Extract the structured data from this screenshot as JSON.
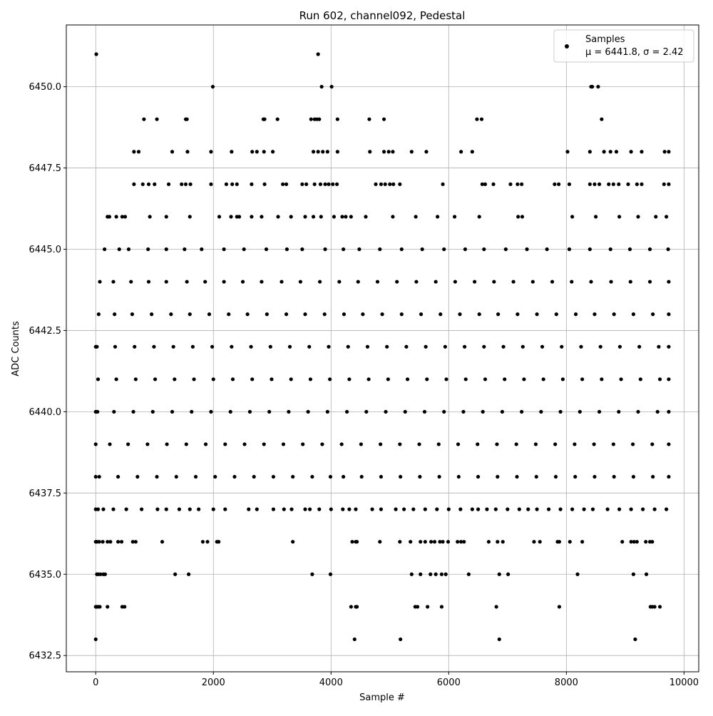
{
  "chart_data": {
    "type": "scatter",
    "title": "Run 602, channel092, Pedestal",
    "xlabel": "Sample #",
    "ylabel": "ADC Counts",
    "xlim": [
      -500,
      10250
    ],
    "ylim": [
      6432.0,
      6451.9
    ],
    "grid": true,
    "xticks": [
      0,
      2000,
      4000,
      6000,
      8000,
      10000
    ],
    "xtick_labels": [
      "0",
      "2000",
      "4000",
      "6000",
      "8000",
      "10000"
    ],
    "yticks": [
      6432.5,
      6435.0,
      6437.5,
      6440.0,
      6442.5,
      6445.0,
      6447.5,
      6450.0
    ],
    "ytick_labels": [
      "6432.5",
      "6435.0",
      "6437.5",
      "6440.0",
      "6442.5",
      "6445.0",
      "6447.5",
      "6450.0"
    ],
    "legend": {
      "placement": "top-right",
      "series_name": "Samples",
      "stats_text": "μ = 6441.8, σ = 2.42"
    },
    "marker_color": "#000000",
    "series": [
      {
        "name": "Samples",
        "x": [
          10,
          1990,
          3780,
          3840,
          4010,
          8420,
          8440,
          8540,
          820,
          1040,
          1530,
          1550,
          2850,
          2870,
          3090,
          3660,
          3720,
          3760,
          3800,
          4110,
          4650,
          4900,
          6480,
          6560,
          8600,
          650,
          730,
          1300,
          1560,
          1960,
          2310,
          2660,
          2740,
          2860,
          3010,
          3700,
          3780,
          3860,
          3940,
          4110,
          4660,
          4900,
          4980,
          5050,
          5370,
          5620,
          6210,
          6400,
          8020,
          8400,
          8640,
          8750,
          8850,
          9100,
          9280,
          9670,
          9740,
          650,
          800,
          900,
          1000,
          1240,
          1460,
          1530,
          1610,
          1960,
          2220,
          2320,
          2400,
          2650,
          2870,
          3180,
          3240,
          3510,
          3580,
          3720,
          3820,
          3900,
          3960,
          4030,
          4100,
          4760,
          4850,
          4920,
          5000,
          5060,
          5170,
          5900,
          6570,
          6620,
          6760,
          7050,
          7170,
          7240,
          7800,
          7870,
          8050,
          8400,
          8480,
          8560,
          8720,
          8800,
          8890,
          9050,
          9200,
          9280,
          9660,
          9740,
          233,
          200,
          350,
          500,
          450,
          1200,
          920,
          1600,
          2100,
          2300,
          2400,
          2440,
          2650,
          2820,
          3100,
          3320,
          3560,
          3700,
          3830,
          4050,
          4190,
          4250,
          4340,
          4590,
          5050,
          5440,
          5810,
          6100,
          6520,
          7180,
          7250,
          8100,
          8500,
          8900,
          9220,
          9520,
          9700,
          150,
          400,
          560,
          890,
          1200,
          1510,
          1800,
          2180,
          2520,
          2900,
          3250,
          3510,
          3900,
          4210,
          4480,
          4830,
          5200,
          5550,
          5920,
          6280,
          6600,
          6970,
          7330,
          7670,
          8050,
          8400,
          8750,
          9080,
          9420,
          9730,
          70,
          300,
          600,
          900,
          1200,
          1550,
          1860,
          2180,
          2500,
          2820,
          3160,
          3480,
          3810,
          4140,
          4460,
          4790,
          5120,
          5450,
          5780,
          6110,
          6440,
          6770,
          7100,
          7430,
          7760,
          8090,
          8420,
          8760,
          9090,
          9420,
          9740,
          50,
          320,
          620,
          950,
          1280,
          1600,
          1930,
          2260,
          2580,
          2910,
          3240,
          3560,
          3890,
          4220,
          4540,
          4870,
          5200,
          5530,
          5860,
          6190,
          6520,
          6840,
          7170,
          7500,
          7830,
          8160,
          8480,
          8810,
          9140,
          9470,
          9740,
          0,
          20,
          330,
          660,
          990,
          1320,
          1650,
          1980,
          2310,
          2640,
          2970,
          3300,
          3630,
          3960,
          4290,
          4620,
          4950,
          5280,
          5610,
          5940,
          6270,
          6600,
          6930,
          7260,
          7590,
          7920,
          8250,
          8580,
          8910,
          9240,
          9570,
          9740,
          40,
          350,
          680,
          1010,
          1340,
          1670,
          2000,
          2330,
          2660,
          2990,
          3320,
          3650,
          3980,
          4310,
          4640,
          4970,
          5300,
          5630,
          5960,
          6290,
          6620,
          6950,
          7280,
          7610,
          7940,
          8270,
          8600,
          8930,
          9260,
          9590,
          9740,
          0,
          30,
          310,
          640,
          970,
          1300,
          1630,
          1960,
          2290,
          2620,
          2950,
          3280,
          3610,
          3940,
          4270,
          4600,
          4930,
          5260,
          5590,
          5920,
          6250,
          6580,
          6910,
          7240,
          7570,
          7900,
          8230,
          8560,
          8890,
          9220,
          9550,
          9740,
          0,
          240,
          550,
          880,
          1210,
          1540,
          1870,
          2200,
          2530,
          2860,
          3190,
          3520,
          3850,
          4180,
          4510,
          4840,
          5170,
          5500,
          5830,
          6160,
          6490,
          6820,
          7150,
          7480,
          7810,
          8140,
          8470,
          8800,
          9130,
          9460,
          9740,
          0,
          60,
          380,
          710,
          1040,
          1370,
          1700,
          2030,
          2360,
          2690,
          3020,
          3350,
          3680,
          3990,
          4210,
          4520,
          4850,
          5180,
          5510,
          5840,
          6170,
          6500,
          6830,
          7160,
          7490,
          7820,
          8150,
          8480,
          8810,
          9140,
          9470,
          9740,
          0,
          40,
          130,
          300,
          520,
          780,
          1050,
          1200,
          1420,
          1600,
          1750,
          2000,
          2200,
          2600,
          2740,
          3020,
          3200,
          3330,
          3560,
          3640,
          3800,
          4000,
          4200,
          4310,
          4420,
          4700,
          4850,
          5100,
          5240,
          5400,
          5600,
          5800,
          6000,
          6200,
          6400,
          6500,
          6650,
          6800,
          7000,
          7200,
          7350,
          7500,
          7700,
          7900,
          8100,
          8300,
          8450,
          8700,
          8900,
          9100,
          9300,
          9500,
          9700,
          0,
          20,
          60,
          120,
          200,
          250,
          380,
          440,
          630,
          680,
          1130,
          1820,
          1900,
          2060,
          2090,
          3350,
          4360,
          4420,
          4440,
          4830,
          5170,
          5350,
          5520,
          5600,
          5700,
          5760,
          5850,
          5900,
          5990,
          6150,
          6210,
          6260,
          6680,
          6830,
          6920,
          7450,
          7550,
          7850,
          7880,
          8060,
          8270,
          8950,
          9100,
          9150,
          9200,
          9350,
          9420,
          9460,
          20,
          40,
          80,
          130,
          160,
          1350,
          1580,
          3680,
          3990,
          5370,
          5520,
          5690,
          5780,
          5880,
          5950,
          6340,
          6860,
          7010,
          8190,
          9140,
          9360,
          0,
          20,
          40,
          70,
          200,
          450,
          490,
          4340,
          4420,
          4440,
          5430,
          5470,
          5640,
          5880,
          6810,
          7880,
          9430,
          9460,
          9500,
          9590,
          0,
          4400,
          5180,
          6860,
          9170
        ],
        "y": [
          6451.0,
          6450.0,
          6451.0,
          6450.0,
          6450.0,
          6450.0,
          6450.0,
          6450.0,
          6449.0,
          6449.0,
          6449.0,
          6449.0,
          6449.0,
          6449.0,
          6449.0,
          6449.0,
          6449.0,
          6449.0,
          6449.0,
          6449.0,
          6449.0,
          6449.0,
          6449.0,
          6449.0,
          6449.0,
          6448.0,
          6448.0,
          6448.0,
          6448.0,
          6448.0,
          6448.0,
          6448.0,
          6448.0,
          6448.0,
          6448.0,
          6448.0,
          6448.0,
          6448.0,
          6448.0,
          6448.0,
          6448.0,
          6448.0,
          6448.0,
          6448.0,
          6448.0,
          6448.0,
          6448.0,
          6448.0,
          6448.0,
          6448.0,
          6448.0,
          6448.0,
          6448.0,
          6448.0,
          6448.0,
          6448.0,
          6448.0,
          6447.0,
          6447.0,
          6447.0,
          6447.0,
          6447.0,
          6447.0,
          6447.0,
          6447.0,
          6447.0,
          6447.0,
          6447.0,
          6447.0,
          6447.0,
          6447.0,
          6447.0,
          6447.0,
          6447.0,
          6447.0,
          6447.0,
          6447.0,
          6447.0,
          6447.0,
          6447.0,
          6447.0,
          6447.0,
          6447.0,
          6447.0,
          6447.0,
          6447.0,
          6447.0,
          6447.0,
          6447.0,
          6447.0,
          6447.0,
          6447.0,
          6447.0,
          6447.0,
          6447.0,
          6447.0,
          6447.0,
          6447.0,
          6447.0,
          6447.0,
          6447.0,
          6447.0,
          6447.0,
          6447.0,
          6447.0,
          6447.0,
          6447.0,
          6447.0,
          6446.0,
          6446.0,
          6446.0,
          6446.0,
          6446.0,
          6446.0,
          6446.0,
          6446.0,
          6446.0,
          6446.0,
          6446.0,
          6446.0,
          6446.0,
          6446.0,
          6446.0,
          6446.0,
          6446.0,
          6446.0,
          6446.0,
          6446.0,
          6446.0,
          6446.0,
          6446.0,
          6446.0,
          6446.0,
          6446.0,
          6446.0,
          6446.0,
          6446.0,
          6446.0,
          6446.0,
          6446.0,
          6446.0,
          6446.0,
          6446.0,
          6446.0,
          6446.0,
          6445.0,
          6445.0,
          6445.0,
          6445.0,
          6445.0,
          6445.0,
          6445.0,
          6445.0,
          6445.0,
          6445.0,
          6445.0,
          6445.0,
          6445.0,
          6445.0,
          6445.0,
          6445.0,
          6445.0,
          6445.0,
          6445.0,
          6445.0,
          6445.0,
          6445.0,
          6445.0,
          6445.0,
          6445.0,
          6445.0,
          6445.0,
          6445.0,
          6445.0,
          6445.0,
          6444.0,
          6444.0,
          6444.0,
          6444.0,
          6444.0,
          6444.0,
          6444.0,
          6444.0,
          6444.0,
          6444.0,
          6444.0,
          6444.0,
          6444.0,
          6444.0,
          6444.0,
          6444.0,
          6444.0,
          6444.0,
          6444.0,
          6444.0,
          6444.0,
          6444.0,
          6444.0,
          6444.0,
          6444.0,
          6444.0,
          6444.0,
          6444.0,
          6444.0,
          6444.0,
          6444.0,
          6443.0,
          6443.0,
          6443.0,
          6443.0,
          6443.0,
          6443.0,
          6443.0,
          6443.0,
          6443.0,
          6443.0,
          6443.0,
          6443.0,
          6443.0,
          6443.0,
          6443.0,
          6443.0,
          6443.0,
          6443.0,
          6443.0,
          6443.0,
          6443.0,
          6443.0,
          6443.0,
          6443.0,
          6443.0,
          6443.0,
          6443.0,
          6443.0,
          6443.0,
          6443.0,
          6443.0,
          6442.0,
          6442.0,
          6442.0,
          6442.0,
          6442.0,
          6442.0,
          6442.0,
          6442.0,
          6442.0,
          6442.0,
          6442.0,
          6442.0,
          6442.0,
          6442.0,
          6442.0,
          6442.0,
          6442.0,
          6442.0,
          6442.0,
          6442.0,
          6442.0,
          6442.0,
          6442.0,
          6442.0,
          6442.0,
          6442.0,
          6442.0,
          6442.0,
          6442.0,
          6442.0,
          6442.0,
          6442.0,
          6441.0,
          6441.0,
          6441.0,
          6441.0,
          6441.0,
          6441.0,
          6441.0,
          6441.0,
          6441.0,
          6441.0,
          6441.0,
          6441.0,
          6441.0,
          6441.0,
          6441.0,
          6441.0,
          6441.0,
          6441.0,
          6441.0,
          6441.0,
          6441.0,
          6441.0,
          6441.0,
          6441.0,
          6441.0,
          6441.0,
          6441.0,
          6441.0,
          6441.0,
          6441.0,
          6441.0,
          6440.0,
          6440.0,
          6440.0,
          6440.0,
          6440.0,
          6440.0,
          6440.0,
          6440.0,
          6440.0,
          6440.0,
          6440.0,
          6440.0,
          6440.0,
          6440.0,
          6440.0,
          6440.0,
          6440.0,
          6440.0,
          6440.0,
          6440.0,
          6440.0,
          6440.0,
          6440.0,
          6440.0,
          6440.0,
          6440.0,
          6440.0,
          6440.0,
          6440.0,
          6440.0,
          6440.0,
          6440.0,
          6439.0,
          6439.0,
          6439.0,
          6439.0,
          6439.0,
          6439.0,
          6439.0,
          6439.0,
          6439.0,
          6439.0,
          6439.0,
          6439.0,
          6439.0,
          6439.0,
          6439.0,
          6439.0,
          6439.0,
          6439.0,
          6439.0,
          6439.0,
          6439.0,
          6439.0,
          6439.0,
          6439.0,
          6439.0,
          6439.0,
          6439.0,
          6439.0,
          6439.0,
          6439.0,
          6439.0,
          6438.0,
          6438.0,
          6438.0,
          6438.0,
          6438.0,
          6438.0,
          6438.0,
          6438.0,
          6438.0,
          6438.0,
          6438.0,
          6438.0,
          6438.0,
          6438.0,
          6438.0,
          6438.0,
          6438.0,
          6438.0,
          6438.0,
          6438.0,
          6438.0,
          6438.0,
          6438.0,
          6438.0,
          6438.0,
          6438.0,
          6438.0,
          6438.0,
          6438.0,
          6438.0,
          6438.0,
          6438.0,
          6437.0,
          6437.0,
          6437.0,
          6437.0,
          6437.0,
          6437.0,
          6437.0,
          6437.0,
          6437.0,
          6437.0,
          6437.0,
          6437.0,
          6437.0,
          6437.0,
          6437.0,
          6437.0,
          6437.0,
          6437.0,
          6437.0,
          6437.0,
          6437.0,
          6437.0,
          6437.0,
          6437.0,
          6437.0,
          6437.0,
          6437.0,
          6437.0,
          6437.0,
          6437.0,
          6437.0,
          6437.0,
          6437.0,
          6437.0,
          6437.0,
          6437.0,
          6437.0,
          6437.0,
          6437.0,
          6437.0,
          6437.0,
          6437.0,
          6437.0,
          6437.0,
          6437.0,
          6437.0,
          6437.0,
          6437.0,
          6437.0,
          6437.0,
          6437.0,
          6437.0,
          6437.0,
          6436.0,
          6436.0,
          6436.0,
          6436.0,
          6436.0,
          6436.0,
          6436.0,
          6436.0,
          6436.0,
          6436.0,
          6436.0,
          6436.0,
          6436.0,
          6436.0,
          6436.0,
          6436.0,
          6436.0,
          6436.0,
          6436.0,
          6436.0,
          6436.0,
          6436.0,
          6436.0,
          6436.0,
          6436.0,
          6436.0,
          6436.0,
          6436.0,
          6436.0,
          6436.0,
          6436.0,
          6436.0,
          6436.0,
          6436.0,
          6436.0,
          6436.0,
          6436.0,
          6436.0,
          6436.0,
          6436.0,
          6436.0,
          6436.0,
          6436.0,
          6436.0,
          6436.0,
          6436.0,
          6436.0,
          6436.0,
          6435.0,
          6435.0,
          6435.0,
          6435.0,
          6435.0,
          6435.0,
          6435.0,
          6435.0,
          6435.0,
          6435.0,
          6435.0,
          6435.0,
          6435.0,
          6435.0,
          6435.0,
          6435.0,
          6435.0,
          6435.0,
          6435.0,
          6435.0,
          6435.0,
          6434.0,
          6434.0,
          6434.0,
          6434.0,
          6434.0,
          6434.0,
          6434.0,
          6434.0,
          6434.0,
          6434.0,
          6434.0,
          6434.0,
          6434.0,
          6434.0,
          6434.0,
          6434.0,
          6434.0,
          6434.0,
          6434.0,
          6434.0,
          6433.0,
          6433.0,
          6433.0,
          6433.0,
          6433.0
        ]
      }
    ]
  }
}
